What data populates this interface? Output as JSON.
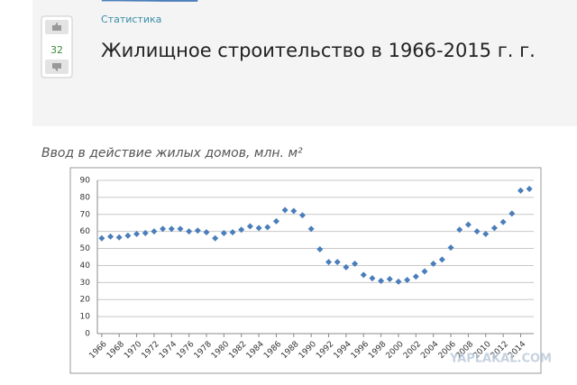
{
  "page": {
    "votes": "32",
    "category": "Статистика",
    "title": "Жилищное строительство в 1966-2015 г. г.",
    "watermark": "YAPLAKAL.COM"
  },
  "chart_data": {
    "type": "line",
    "title": "Ввод в действие жилых домов, млн. м²",
    "x": [
      1966,
      1967,
      1968,
      1969,
      1970,
      1971,
      1972,
      1973,
      1974,
      1975,
      1976,
      1977,
      1978,
      1979,
      1980,
      1981,
      1982,
      1983,
      1984,
      1985,
      1986,
      1987,
      1988,
      1989,
      1990,
      1991,
      1992,
      1993,
      1994,
      1995,
      1996,
      1997,
      1998,
      1999,
      2000,
      2001,
      2002,
      2003,
      2004,
      2005,
      2006,
      2007,
      2008,
      2009,
      2010,
      2011,
      2012,
      2013,
      2014,
      2015
    ],
    "series": [
      {
        "color": "#4a7ebb",
        "values": [
          56,
          57,
          56.5,
          57.5,
          58.5,
          59,
          60,
          61.5,
          61.5,
          61.5,
          60,
          60.5,
          59.5,
          56,
          59,
          59.5,
          61,
          63,
          62,
          62.5,
          66,
          72.5,
          72,
          69.5,
          61.5,
          49.5,
          42,
          42,
          39,
          41,
          34.5,
          32.5,
          31,
          32,
          30.5,
          31.5,
          33.5,
          36.5,
          41,
          43.5,
          50.5,
          61,
          64,
          60,
          58.5,
          62,
          65.5,
          70.5,
          84,
          85
        ]
      }
    ],
    "xlim": [
      1965.5,
      2015.5
    ],
    "xticks": [
      1966,
      1968,
      1970,
      1972,
      1974,
      1976,
      1978,
      1980,
      1982,
      1984,
      1986,
      1988,
      1990,
      1992,
      1994,
      1996,
      1998,
      2000,
      2002,
      2004,
      2006,
      2008,
      2010,
      2012,
      2014
    ],
    "ylim": [
      0,
      90
    ],
    "yticks": [
      0,
      10,
      20,
      30,
      40,
      50,
      60,
      70,
      80,
      90
    ],
    "grid": true
  }
}
